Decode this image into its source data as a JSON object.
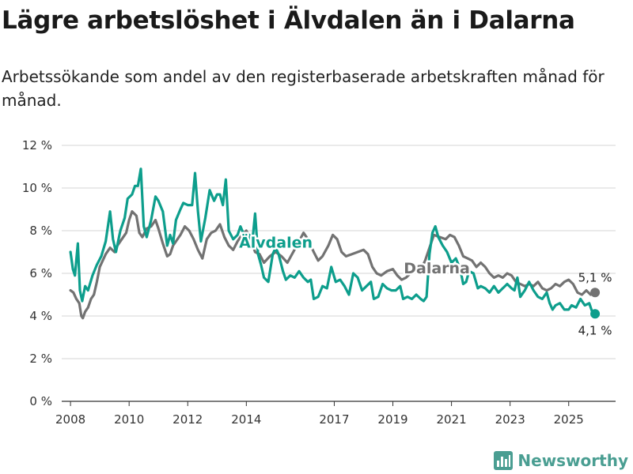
{
  "header": {
    "title": "Lägre arbetslöshet i Älvdalen än i Dalarna",
    "subtitle": "Arbetssökande som andel av den registerbaserade arbetskraften månad för månad."
  },
  "logo": {
    "text": "Newsworthy",
    "icon": "bar-chart-logo-icon",
    "color": "#4a9e92"
  },
  "colors": {
    "alvdalen": "#0d9e8c",
    "dalarna": "#727272",
    "grid": "#d6d6d6",
    "axis": "#333333"
  },
  "chart_data": {
    "type": "line",
    "title": "Lägre arbetslöshet i Älvdalen än i Dalarna",
    "xlabel": "",
    "ylabel": "",
    "xlim": [
      2007.7,
      2026.6
    ],
    "ylim": [
      0,
      12
    ],
    "y_ticks": [
      0,
      2,
      4,
      6,
      8,
      10,
      12
    ],
    "y_tick_labels": [
      "0 %",
      "2 %",
      "4 %",
      "6 %",
      "8 %",
      "10 %",
      "12 %"
    ],
    "x_ticks": [
      2008,
      2010,
      2012,
      2014,
      2017,
      2019,
      2021,
      2023,
      2025
    ],
    "x_tick_labels": [
      "2008",
      "2010",
      "2012",
      "2014",
      "2017",
      "2019",
      "2021",
      "2023",
      "2025"
    ],
    "grid": true,
    "legend": "inline labels",
    "series": [
      {
        "name": "Dalarna",
        "label": "Dalarna",
        "end_label": "5,1 %",
        "points": [
          [
            2008.0,
            5.2
          ],
          [
            2008.1,
            5.1
          ],
          [
            2008.2,
            4.8
          ],
          [
            2008.3,
            4.6
          ],
          [
            2008.37,
            4.0
          ],
          [
            2008.42,
            3.9
          ],
          [
            2008.5,
            4.2
          ],
          [
            2008.6,
            4.4
          ],
          [
            2008.7,
            4.8
          ],
          [
            2008.8,
            5.0
          ],
          [
            2008.9,
            5.6
          ],
          [
            2009.0,
            6.3
          ],
          [
            2009.2,
            6.9
          ],
          [
            2009.35,
            7.2
          ],
          [
            2009.5,
            7.0
          ],
          [
            2009.6,
            7.3
          ],
          [
            2009.75,
            7.6
          ],
          [
            2009.9,
            7.9
          ],
          [
            2010.0,
            8.5
          ],
          [
            2010.1,
            8.9
          ],
          [
            2010.25,
            8.7
          ],
          [
            2010.35,
            7.9
          ],
          [
            2010.45,
            7.7
          ],
          [
            2010.6,
            8.1
          ],
          [
            2010.75,
            8.2
          ],
          [
            2010.9,
            8.5
          ],
          [
            2011.0,
            8.1
          ],
          [
            2011.15,
            7.4
          ],
          [
            2011.3,
            6.8
          ],
          [
            2011.4,
            6.9
          ],
          [
            2011.5,
            7.3
          ],
          [
            2011.6,
            7.5
          ],
          [
            2011.75,
            7.8
          ],
          [
            2011.9,
            8.2
          ],
          [
            2012.05,
            8.0
          ],
          [
            2012.2,
            7.6
          ],
          [
            2012.35,
            7.1
          ],
          [
            2012.5,
            6.7
          ],
          [
            2012.65,
            7.6
          ],
          [
            2012.8,
            7.9
          ],
          [
            2012.95,
            8.0
          ],
          [
            2013.1,
            8.3
          ],
          [
            2013.25,
            7.7
          ],
          [
            2013.4,
            7.3
          ],
          [
            2013.55,
            7.1
          ],
          [
            2013.7,
            7.5
          ],
          [
            2013.85,
            7.8
          ],
          [
            2014.0,
            8.0
          ],
          [
            2014.15,
            7.6
          ],
          [
            2014.3,
            7.0
          ],
          [
            2014.45,
            6.9
          ],
          [
            2014.6,
            6.5
          ],
          [
            2014.8,
            6.8
          ],
          [
            2015.0,
            7.0
          ],
          [
            2015.2,
            6.8
          ],
          [
            2015.4,
            6.5
          ],
          [
            2015.6,
            7.0
          ],
          [
            2015.8,
            7.5
          ],
          [
            2015.95,
            7.9
          ],
          [
            2016.1,
            7.6
          ],
          [
            2016.3,
            7.0
          ],
          [
            2016.45,
            6.6
          ],
          [
            2016.6,
            6.8
          ],
          [
            2016.8,
            7.3
          ],
          [
            2016.95,
            7.8
          ],
          [
            2017.1,
            7.6
          ],
          [
            2017.25,
            7.0
          ],
          [
            2017.4,
            6.8
          ],
          [
            2017.6,
            6.9
          ],
          [
            2017.8,
            7.0
          ],
          [
            2018.0,
            7.1
          ],
          [
            2018.15,
            6.9
          ],
          [
            2018.3,
            6.3
          ],
          [
            2018.45,
            6.0
          ],
          [
            2018.6,
            5.9
          ],
          [
            2018.8,
            6.1
          ],
          [
            2019.0,
            6.2
          ],
          [
            2019.15,
            5.9
          ],
          [
            2019.3,
            5.7
          ],
          [
            2019.45,
            5.8
          ],
          [
            2019.6,
            6.0
          ],
          [
            2019.8,
            6.1
          ],
          [
            2020.0,
            6.3
          ],
          [
            2020.1,
            6.6
          ],
          [
            2020.25,
            7.2
          ],
          [
            2020.4,
            7.8
          ],
          [
            2020.6,
            7.7
          ],
          [
            2020.8,
            7.6
          ],
          [
            2020.95,
            7.8
          ],
          [
            2021.1,
            7.7
          ],
          [
            2021.25,
            7.3
          ],
          [
            2021.4,
            6.8
          ],
          [
            2021.55,
            6.7
          ],
          [
            2021.7,
            6.6
          ],
          [
            2021.85,
            6.3
          ],
          [
            2022.0,
            6.5
          ],
          [
            2022.15,
            6.3
          ],
          [
            2022.3,
            6.0
          ],
          [
            2022.45,
            5.8
          ],
          [
            2022.6,
            5.9
          ],
          [
            2022.75,
            5.8
          ],
          [
            2022.9,
            6.0
          ],
          [
            2023.05,
            5.9
          ],
          [
            2023.2,
            5.6
          ],
          [
            2023.35,
            5.5
          ],
          [
            2023.5,
            5.4
          ],
          [
            2023.65,
            5.5
          ],
          [
            2023.8,
            5.4
          ],
          [
            2023.95,
            5.6
          ],
          [
            2024.1,
            5.3
          ],
          [
            2024.25,
            5.2
          ],
          [
            2024.4,
            5.3
          ],
          [
            2024.55,
            5.5
          ],
          [
            2024.7,
            5.4
          ],
          [
            2024.85,
            5.6
          ],
          [
            2025.0,
            5.7
          ],
          [
            2025.15,
            5.5
          ],
          [
            2025.3,
            5.1
          ],
          [
            2025.45,
            5.0
          ],
          [
            2025.6,
            5.2
          ],
          [
            2025.75,
            5.0
          ],
          [
            2025.9,
            5.1
          ]
        ]
      },
      {
        "name": "Älvdalen",
        "label": "Älvdalen",
        "end_label": "4,1 %",
        "points": [
          [
            2008.0,
            7.0
          ],
          [
            2008.08,
            6.2
          ],
          [
            2008.15,
            5.9
          ],
          [
            2008.25,
            7.4
          ],
          [
            2008.32,
            5.2
          ],
          [
            2008.4,
            4.7
          ],
          [
            2008.5,
            5.4
          ],
          [
            2008.6,
            5.2
          ],
          [
            2008.75,
            5.9
          ],
          [
            2008.9,
            6.4
          ],
          [
            2009.05,
            6.8
          ],
          [
            2009.2,
            7.5
          ],
          [
            2009.35,
            8.9
          ],
          [
            2009.45,
            7.6
          ],
          [
            2009.55,
            7.0
          ],
          [
            2009.7,
            8.0
          ],
          [
            2009.85,
            8.6
          ],
          [
            2009.95,
            9.5
          ],
          [
            2010.1,
            9.7
          ],
          [
            2010.2,
            10.1
          ],
          [
            2010.3,
            10.1
          ],
          [
            2010.4,
            10.9
          ],
          [
            2010.5,
            8.2
          ],
          [
            2010.6,
            7.7
          ],
          [
            2010.75,
            8.5
          ],
          [
            2010.9,
            9.6
          ],
          [
            2011.0,
            9.4
          ],
          [
            2011.15,
            8.9
          ],
          [
            2011.3,
            7.3
          ],
          [
            2011.4,
            7.8
          ],
          [
            2011.5,
            7.4
          ],
          [
            2011.6,
            8.5
          ],
          [
            2011.75,
            9.0
          ],
          [
            2011.85,
            9.3
          ],
          [
            2012.0,
            9.2
          ],
          [
            2012.15,
            9.2
          ],
          [
            2012.25,
            10.7
          ],
          [
            2012.35,
            8.9
          ],
          [
            2012.45,
            7.5
          ],
          [
            2012.6,
            8.6
          ],
          [
            2012.75,
            9.9
          ],
          [
            2012.9,
            9.4
          ],
          [
            2013.0,
            9.7
          ],
          [
            2013.1,
            9.7
          ],
          [
            2013.2,
            9.2
          ],
          [
            2013.3,
            10.4
          ],
          [
            2013.4,
            8.0
          ],
          [
            2013.55,
            7.6
          ],
          [
            2013.7,
            7.8
          ],
          [
            2013.8,
            8.2
          ],
          [
            2013.95,
            7.7
          ],
          [
            2014.1,
            7.8
          ],
          [
            2014.2,
            7.4
          ],
          [
            2014.3,
            8.8
          ],
          [
            2014.4,
            6.9
          ],
          [
            2014.5,
            6.4
          ],
          [
            2014.6,
            5.8
          ],
          [
            2014.75,
            5.6
          ],
          [
            2014.9,
            6.9
          ],
          [
            2015.0,
            7.2
          ],
          [
            2015.1,
            6.9
          ],
          [
            2015.25,
            6.1
          ],
          [
            2015.35,
            5.7
          ],
          [
            2015.5,
            5.9
          ],
          [
            2015.65,
            5.8
          ],
          [
            2015.8,
            6.1
          ],
          [
            2015.95,
            5.8
          ],
          [
            2016.1,
            5.6
          ],
          [
            2016.2,
            5.7
          ],
          [
            2016.3,
            4.8
          ],
          [
            2016.45,
            4.9
          ],
          [
            2016.6,
            5.4
          ],
          [
            2016.75,
            5.3
          ],
          [
            2016.9,
            6.3
          ],
          [
            2017.05,
            5.6
          ],
          [
            2017.2,
            5.7
          ],
          [
            2017.35,
            5.4
          ],
          [
            2017.5,
            5.0
          ],
          [
            2017.65,
            6.0
          ],
          [
            2017.8,
            5.8
          ],
          [
            2017.95,
            5.2
          ],
          [
            2018.1,
            5.4
          ],
          [
            2018.25,
            5.6
          ],
          [
            2018.35,
            4.8
          ],
          [
            2018.5,
            4.9
          ],
          [
            2018.65,
            5.5
          ],
          [
            2018.8,
            5.3
          ],
          [
            2018.95,
            5.2
          ],
          [
            2019.1,
            5.2
          ],
          [
            2019.25,
            5.4
          ],
          [
            2019.35,
            4.8
          ],
          [
            2019.5,
            4.9
          ],
          [
            2019.65,
            4.8
          ],
          [
            2019.8,
            5.0
          ],
          [
            2019.95,
            4.8
          ],
          [
            2020.05,
            4.7
          ],
          [
            2020.15,
            4.9
          ],
          [
            2020.25,
            6.9
          ],
          [
            2020.35,
            7.9
          ],
          [
            2020.45,
            8.2
          ],
          [
            2020.55,
            7.7
          ],
          [
            2020.7,
            7.3
          ],
          [
            2020.85,
            7.0
          ],
          [
            2021.0,
            6.5
          ],
          [
            2021.15,
            6.7
          ],
          [
            2021.3,
            6.2
          ],
          [
            2021.4,
            5.5
          ],
          [
            2021.5,
            5.6
          ],
          [
            2021.6,
            6.1
          ],
          [
            2021.75,
            6.0
          ],
          [
            2021.9,
            5.3
          ],
          [
            2022.0,
            5.4
          ],
          [
            2022.15,
            5.3
          ],
          [
            2022.3,
            5.1
          ],
          [
            2022.45,
            5.4
          ],
          [
            2022.6,
            5.1
          ],
          [
            2022.75,
            5.3
          ],
          [
            2022.9,
            5.5
          ],
          [
            2023.05,
            5.3
          ],
          [
            2023.15,
            5.2
          ],
          [
            2023.25,
            5.8
          ],
          [
            2023.35,
            4.9
          ],
          [
            2023.5,
            5.2
          ],
          [
            2023.65,
            5.6
          ],
          [
            2023.8,
            5.2
          ],
          [
            2023.95,
            4.9
          ],
          [
            2024.1,
            4.8
          ],
          [
            2024.25,
            5.1
          ],
          [
            2024.35,
            4.6
          ],
          [
            2024.45,
            4.3
          ],
          [
            2024.55,
            4.5
          ],
          [
            2024.7,
            4.6
          ],
          [
            2024.85,
            4.3
          ],
          [
            2025.0,
            4.3
          ],
          [
            2025.1,
            4.5
          ],
          [
            2025.25,
            4.4
          ],
          [
            2025.4,
            4.8
          ],
          [
            2025.55,
            4.5
          ],
          [
            2025.7,
            4.6
          ],
          [
            2025.8,
            4.2
          ],
          [
            2025.9,
            4.1
          ]
        ]
      }
    ]
  }
}
